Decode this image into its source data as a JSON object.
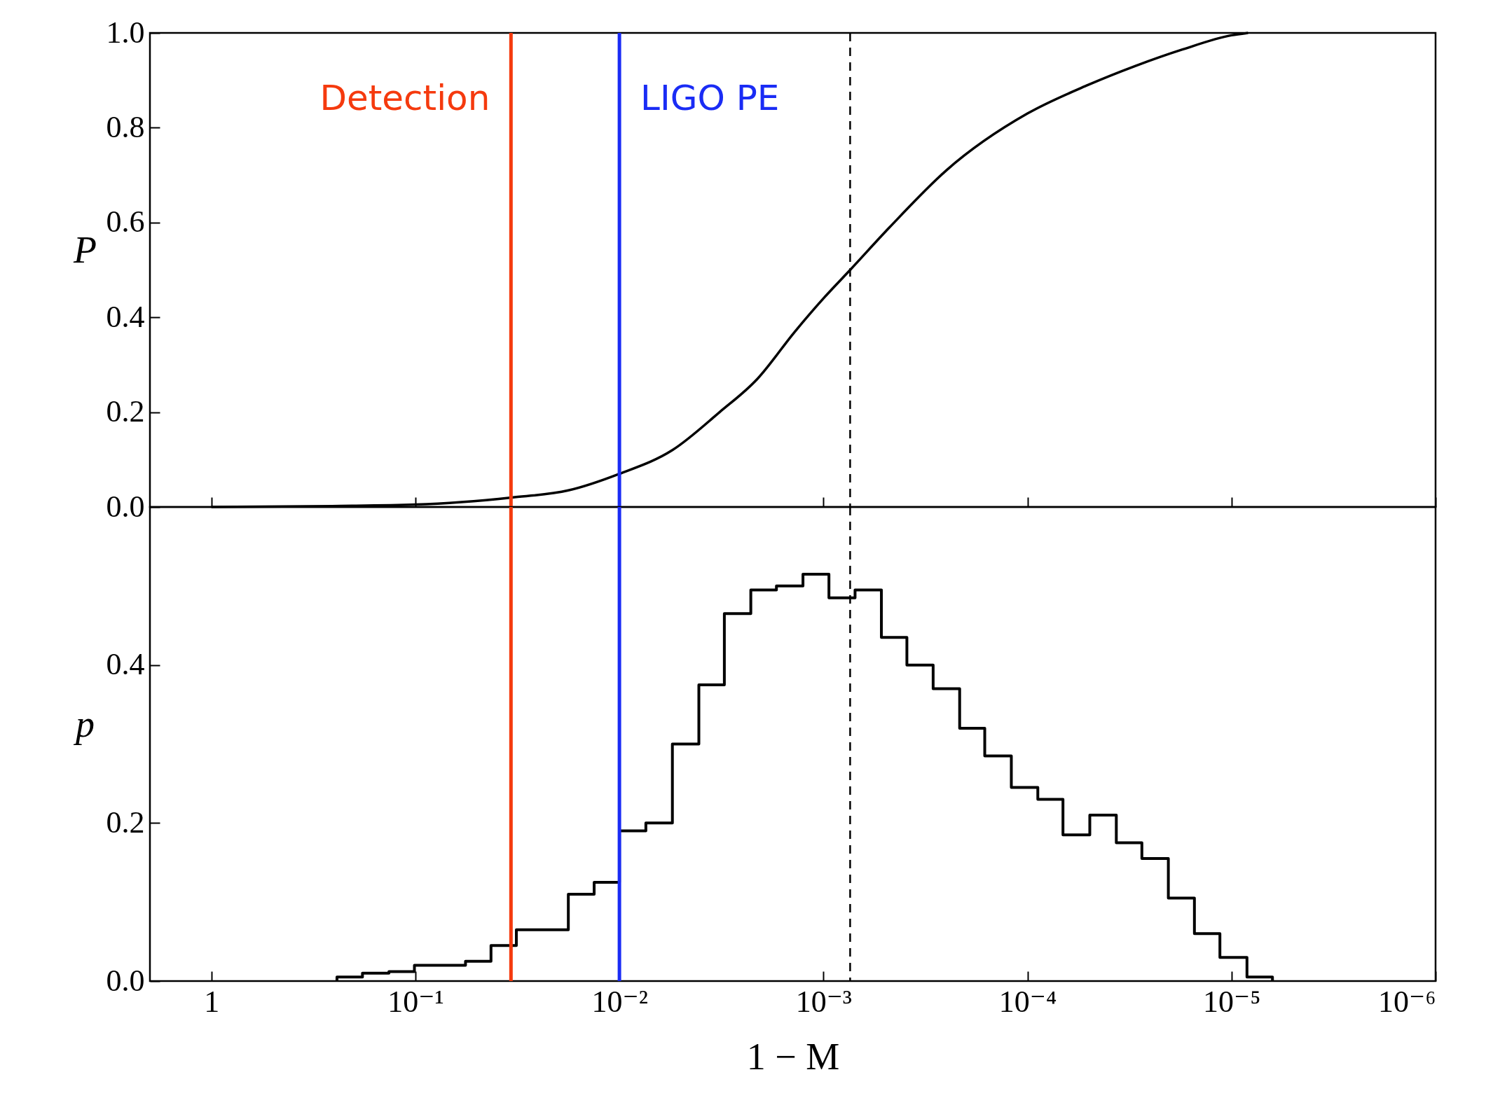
{
  "chart_data": [
    {
      "type": "line",
      "ylabel": "P",
      "log": "x",
      "grid": false,
      "tick_labels": "y",
      "xlim": [
        2,
        1e-06
      ],
      "xticks": [
        {
          "value": 1,
          "label": null
        },
        {
          "value": 0.1,
          "label": null
        },
        {
          "value": 0.01,
          "label": null
        },
        {
          "value": 0.001,
          "label": null
        },
        {
          "value": 0.0001,
          "label": null
        },
        {
          "value": 1e-05,
          "label": null
        },
        {
          "value": 1e-06,
          "label": null
        }
      ],
      "ylim": [
        0,
        1
      ],
      "yticks": [
        {
          "value": 0,
          "label": "0.0"
        },
        {
          "value": 0.2,
          "label": "0.2"
        },
        {
          "value": 0.4,
          "label": "0.4"
        },
        {
          "value": 0.6,
          "label": "0.6"
        },
        {
          "value": 0.8,
          "label": "0.8"
        },
        {
          "value": 1,
          "label": "1.0"
        }
      ],
      "series": [
        {
          "color": "#000000",
          "x": [
            1,
            0.256,
            0.1,
            0.0337,
            0.0178,
            0.01,
            0.0055,
            0.00323,
            0.00211,
            0.00138,
            0.001,
            0.00074,
            0.000474,
            0.00025,
            0.0001,
            5.06e-05,
            2.97e-05,
            1.74e-05,
            1e-05,
            8.3e-06
          ],
          "values": [
            0,
            0.002,
            0.005,
            0.02,
            0.035,
            0.07,
            0.12,
            0.2,
            0.27,
            0.37,
            0.44,
            0.5,
            0.59,
            0.71,
            0.83,
            0.89,
            0.93,
            0.965,
            0.995,
            1.0
          ]
        }
      ],
      "ref_lines": [
        {
          "axis": "x",
          "value": 0.034,
          "label": "Detection",
          "color": "#f53a0e"
        },
        {
          "axis": "x",
          "value": 0.01,
          "label": "LIGO PE",
          "color": "#1a2cf5"
        },
        {
          "axis": "x",
          "value": 0.00074,
          "color": "#000000",
          "line_style": "dashed"
        }
      ]
    },
    {
      "type": "histogram",
      "ylabel": "p",
      "xlabel": "1 − M",
      "log": "x",
      "grid": false,
      "color": "#000000",
      "xlim": [
        2,
        1e-06
      ],
      "xticks": [
        {
          "value": 1,
          "label": "1"
        },
        {
          "value": 0.1,
          "label": "10⁻¹"
        },
        {
          "value": 0.01,
          "label": "10⁻²"
        },
        {
          "value": 0.001,
          "label": "10⁻³"
        },
        {
          "value": 0.0001,
          "label": "10⁻⁴"
        },
        {
          "value": 1e-05,
          "label": "10⁻⁵"
        },
        {
          "value": 1e-06,
          "label": "10⁻⁶"
        }
      ],
      "ylim": [
        0,
        0.6
      ],
      "yticks": [
        {
          "value": 0,
          "label": "0.0"
        },
        {
          "value": 0.2,
          "label": "0.2"
        },
        {
          "value": 0.4,
          "label": "0.4"
        }
      ],
      "bins": [
        0.2423,
        0.1817,
        0.1348,
        0.1011,
        0.0758,
        0.0568,
        0.0426,
        0.032,
        0.024,
        0.0178,
        0.0133,
        0.01,
        0.00742,
        0.0055,
        0.00408,
        0.00306,
        0.00227,
        0.0017,
        0.00126,
        0.00094,
        0.0007,
        0.00052,
        0.00039,
        0.00029,
        0.000215,
        0.000162,
        0.00012,
        8.9e-05,
        6.7e-05,
        4.95e-05,
        3.67e-05,
        2.75e-05,
        2.04e-05,
        1.52e-05,
        1.14e-05,
        8.4e-06,
        6.3e-06
      ],
      "values": [
        0.005,
        0.01,
        0.012,
        0.02,
        0.02,
        0.025,
        0.045,
        0.065,
        0.065,
        0.11,
        0.125,
        0.19,
        0.2,
        0.3,
        0.375,
        0.465,
        0.495,
        0.5,
        0.515,
        0.485,
        0.495,
        0.435,
        0.4,
        0.37,
        0.32,
        0.285,
        0.245,
        0.23,
        0.185,
        0.21,
        0.175,
        0.155,
        0.105,
        0.06,
        0.03,
        0.005
      ],
      "ref_lines": [
        {
          "axis": "x",
          "value": 0.034,
          "color": "#f53a0e"
        },
        {
          "axis": "x",
          "value": 0.01,
          "color": "#1a2cf5"
        },
        {
          "axis": "x",
          "value": 0.00074,
          "color": "#000000",
          "line_style": "dashed"
        }
      ]
    }
  ]
}
